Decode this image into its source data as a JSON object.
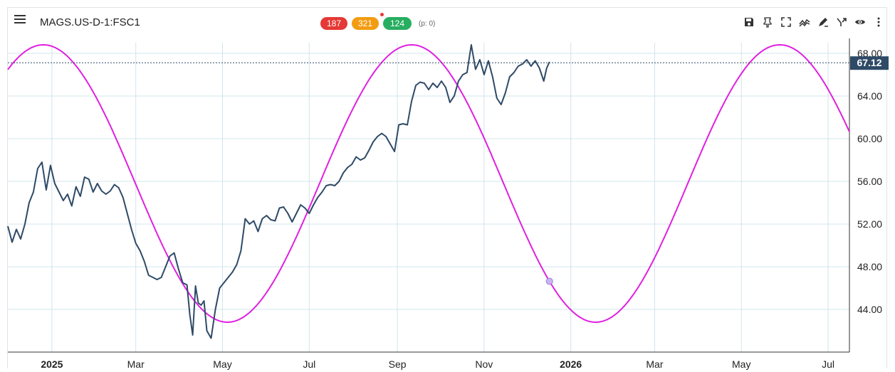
{
  "header": {
    "symbol": "MAGS.US-D-1:FSC1",
    "badges": [
      {
        "label": "187",
        "color": "#e53935"
      },
      {
        "label": "321",
        "color": "#f39c12"
      },
      {
        "label": "124",
        "color": "#27ae60"
      }
    ],
    "p_value": "(p: 0)"
  },
  "toolbar_icons": [
    "save-icon",
    "pin-icon",
    "fullscreen-icon",
    "trend-icon",
    "draw-icon",
    "compare-icon",
    "eye-icon",
    "more-icon"
  ],
  "colors": {
    "price": "#2e4a66",
    "cycle": "#e020e0",
    "grid": "#d3e4ec",
    "price_tag_bg": "#2e4a66",
    "price_tag_text": "#ffffff"
  },
  "chart_data": {
    "type": "line",
    "x_tick_labels": [
      {
        "label": "2025",
        "bold": true,
        "day": 31
      },
      {
        "label": "Mar",
        "bold": false,
        "day": 90
      },
      {
        "label": "May",
        "bold": false,
        "day": 151
      },
      {
        "label": "Jul",
        "bold": false,
        "day": 212
      },
      {
        "label": "Sep",
        "bold": false,
        "day": 274
      },
      {
        "label": "Nov",
        "bold": false,
        "day": 335
      },
      {
        "label": "2026",
        "bold": true,
        "day": 396
      },
      {
        "label": "Mar",
        "bold": false,
        "day": 455
      },
      {
        "label": "May",
        "bold": false,
        "day": 516
      },
      {
        "label": "Jul",
        "bold": false,
        "day": 577
      }
    ],
    "y_ticks": [
      44,
      48,
      52,
      56,
      60,
      64,
      68
    ],
    "y_tick_labels": [
      "44.00",
      "48.00",
      "52.00",
      "56.00",
      "60.00",
      "64.00",
      "68.00"
    ],
    "ylim": [
      40,
      69
    ],
    "xlim": [
      0,
      592
    ],
    "last_price": 67.12,
    "last_price_label": "67.12",
    "series": [
      {
        "role": "price",
        "points": [
          [
            0,
            51.8
          ],
          [
            3,
            50.3
          ],
          [
            6,
            51.5
          ],
          [
            9,
            50.6
          ],
          [
            12,
            52.0
          ],
          [
            15,
            54.0
          ],
          [
            18,
            55.0
          ],
          [
            21,
            57.2
          ],
          [
            24,
            57.8
          ],
          [
            27,
            55.2
          ],
          [
            30,
            57.5
          ],
          [
            33,
            55.8
          ],
          [
            36,
            55.0
          ],
          [
            39,
            54.2
          ],
          [
            42,
            54.8
          ],
          [
            45,
            53.7
          ],
          [
            48,
            55.5
          ],
          [
            51,
            54.6
          ],
          [
            54,
            56.4
          ],
          [
            57,
            56.2
          ],
          [
            60,
            55.0
          ],
          [
            63,
            55.8
          ],
          [
            66,
            55.1
          ],
          [
            69,
            54.8
          ],
          [
            72,
            55.1
          ],
          [
            75,
            55.7
          ],
          [
            78,
            55.4
          ],
          [
            81,
            54.5
          ],
          [
            84,
            53.0
          ],
          [
            87,
            51.5
          ],
          [
            90,
            50.2
          ],
          [
            93,
            49.5
          ],
          [
            96,
            48.5
          ],
          [
            99,
            47.2
          ],
          [
            102,
            47.0
          ],
          [
            105,
            46.8
          ],
          [
            108,
            47.0
          ],
          [
            111,
            48.0
          ],
          [
            114,
            49.0
          ],
          [
            117,
            49.3
          ],
          [
            120,
            47.8
          ],
          [
            123,
            46.5
          ],
          [
            126,
            46.3
          ],
          [
            128,
            43.5
          ],
          [
            130,
            41.6
          ],
          [
            132,
            46.2
          ],
          [
            134,
            44.6
          ],
          [
            136,
            44.4
          ],
          [
            138,
            44.8
          ],
          [
            140,
            42.0
          ],
          [
            143,
            41.3
          ],
          [
            146,
            44.0
          ],
          [
            149,
            46.0
          ],
          [
            152,
            46.5
          ],
          [
            155,
            47.0
          ],
          [
            158,
            47.5
          ],
          [
            161,
            48.2
          ],
          [
            164,
            49.5
          ],
          [
            167,
            52.5
          ],
          [
            170,
            52.0
          ],
          [
            173,
            52.3
          ],
          [
            176,
            51.3
          ],
          [
            179,
            52.5
          ],
          [
            182,
            52.8
          ],
          [
            185,
            52.4
          ],
          [
            188,
            52.3
          ],
          [
            191,
            53.5
          ],
          [
            194,
            53.6
          ],
          [
            197,
            53.0
          ],
          [
            200,
            52.2
          ],
          [
            203,
            53.0
          ],
          [
            206,
            53.8
          ],
          [
            209,
            53.5
          ],
          [
            212,
            53.0
          ],
          [
            215,
            53.8
          ],
          [
            218,
            54.5
          ],
          [
            221,
            55.0
          ],
          [
            224,
            55.6
          ],
          [
            227,
            55.7
          ],
          [
            230,
            55.6
          ],
          [
            233,
            56.0
          ],
          [
            236,
            56.8
          ],
          [
            239,
            57.3
          ],
          [
            242,
            57.6
          ],
          [
            245,
            58.3
          ],
          [
            248,
            58.0
          ],
          [
            251,
            58.2
          ],
          [
            254,
            58.9
          ],
          [
            257,
            59.7
          ],
          [
            260,
            60.2
          ],
          [
            263,
            60.5
          ],
          [
            266,
            60.2
          ],
          [
            269,
            59.5
          ],
          [
            272,
            58.8
          ],
          [
            275,
            61.3
          ],
          [
            278,
            61.4
          ],
          [
            281,
            61.3
          ],
          [
            284,
            63.5
          ],
          [
            287,
            65.0
          ],
          [
            290,
            65.3
          ],
          [
            293,
            65.2
          ],
          [
            296,
            64.6
          ],
          [
            299,
            65.2
          ],
          [
            302,
            64.8
          ],
          [
            305,
            65.4
          ],
          [
            308,
            64.8
          ],
          [
            311,
            63.4
          ],
          [
            314,
            64.0
          ],
          [
            317,
            65.4
          ],
          [
            320,
            66.0
          ],
          [
            323,
            66.2
          ],
          [
            326,
            68.8
          ],
          [
            329,
            66.5
          ],
          [
            332,
            67.4
          ],
          [
            335,
            66.0
          ],
          [
            338,
            67.3
          ],
          [
            341,
            65.8
          ],
          [
            344,
            63.8
          ],
          [
            347,
            63.2
          ],
          [
            350,
            64.3
          ],
          [
            353,
            65.8
          ],
          [
            356,
            66.2
          ],
          [
            359,
            66.8
          ],
          [
            362,
            67.0
          ],
          [
            365,
            67.4
          ],
          [
            368,
            66.8
          ],
          [
            371,
            67.3
          ],
          [
            374,
            66.6
          ],
          [
            377,
            65.4
          ],
          [
            379,
            66.6
          ],
          [
            381,
            67.2
          ]
        ]
      },
      {
        "role": "cycle",
        "params": {
          "mid": 55.8,
          "amp": 13.0,
          "period": 259,
          "peak_day": 25
        },
        "x_start": 0,
        "x_end": 592
      }
    ]
  }
}
